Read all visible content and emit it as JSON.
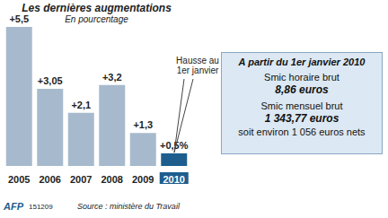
{
  "chart_data": {
    "type": "bar",
    "title": "Les dernières augmentations",
    "subtitle": "En pourcentage",
    "categories": [
      "2005",
      "2006",
      "2007",
      "2008",
      "2009",
      "2010"
    ],
    "values": [
      5.5,
      3.05,
      2.1,
      3.2,
      1.3,
      0.5
    ],
    "value_labels": [
      "+5,5",
      "+3,05",
      "+2,1",
      "+3,2",
      "+1,3",
      "+0,5%"
    ],
    "colors": [
      "#a7bacd",
      "#a7bacd",
      "#a7bacd",
      "#a7bacd",
      "#a7bacd",
      "#1d5e8e"
    ],
    "ylim": [
      0,
      5.5
    ],
    "data_labels": true,
    "tick_labels": "x",
    "annotations": [
      "Hausse au 1er janvier",
      "A partir du 1er janvier 2010",
      "Smic horaire brut",
      "8,86 euros",
      "Smic mensuel brut",
      "1 343,77 euros",
      "soit environ 1 056 euros nets",
      "AFP",
      "151209",
      "Source : ministère du Travail"
    ]
  }
}
